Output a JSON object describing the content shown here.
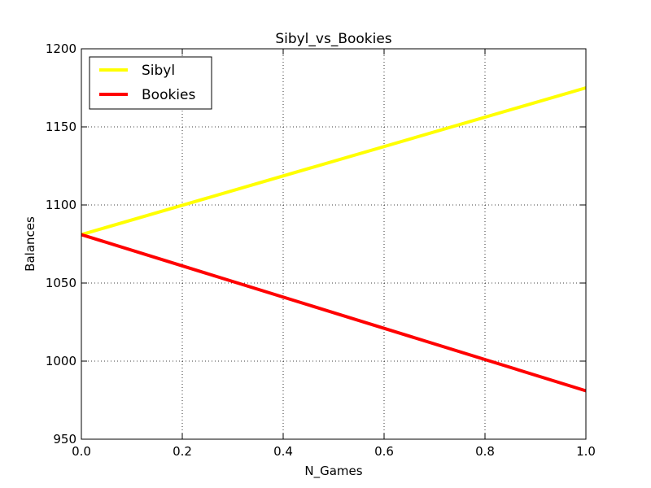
{
  "chart_data": {
    "type": "line",
    "title": "Sibyl_vs_Bookies",
    "xlabel": "N_Games",
    "ylabel": "Balances",
    "xlim": [
      0.0,
      1.0
    ],
    "ylim": [
      950,
      1200
    ],
    "xticks": [
      0.0,
      0.2,
      0.4,
      0.6,
      0.8,
      1.0
    ],
    "xtick_labels": [
      "0.0",
      "0.2",
      "0.4",
      "0.6",
      "0.8",
      "1.0"
    ],
    "yticks": [
      950,
      1000,
      1050,
      1100,
      1150,
      1200
    ],
    "ytick_labels": [
      "950",
      "1000",
      "1050",
      "1100",
      "1150",
      "1200"
    ],
    "grid": true,
    "legend_position": "top-left",
    "series": [
      {
        "name": "Sibyl",
        "color": "#ffff00",
        "x": [
          0.0,
          1.0
        ],
        "y": [
          1081,
          1175
        ]
      },
      {
        "name": "Bookies",
        "color": "#ff0000",
        "x": [
          0.0,
          1.0
        ],
        "y": [
          1081,
          981
        ]
      }
    ]
  }
}
